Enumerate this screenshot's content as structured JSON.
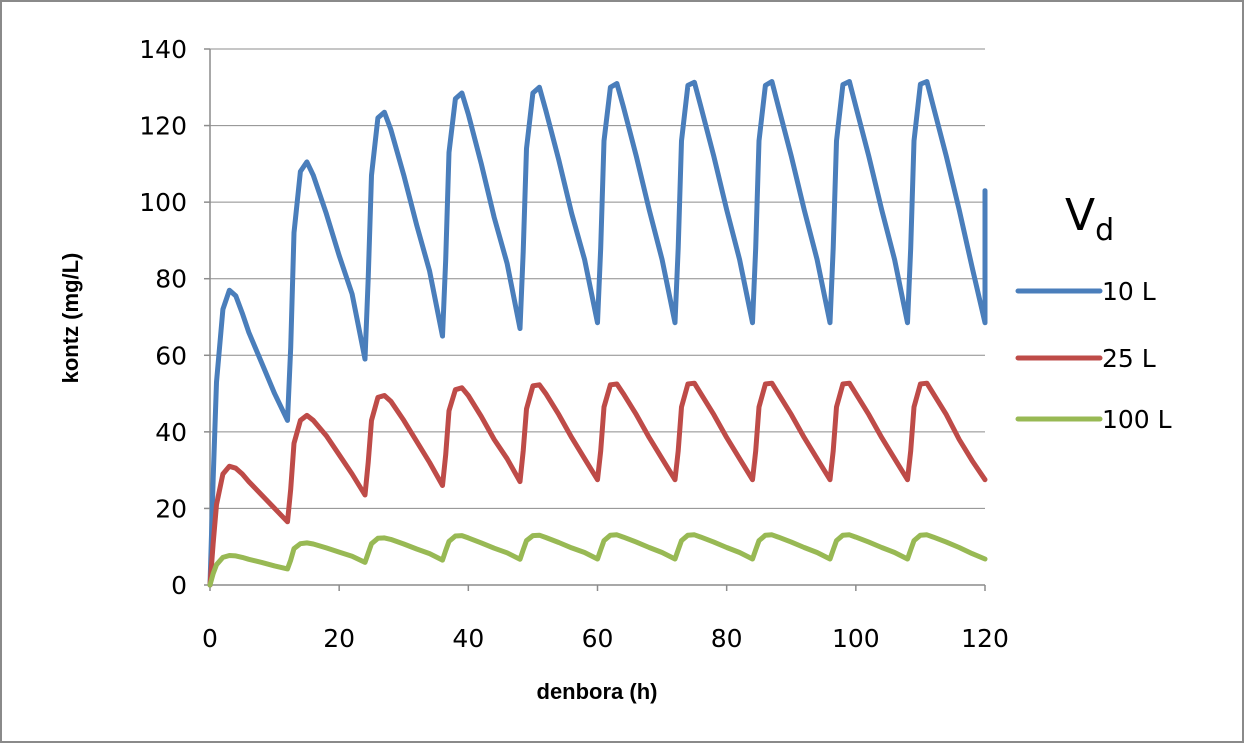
{
  "chart_data": {
    "type": "line",
    "xlabel": "denbora (h)",
    "ylabel": "kontz (mg/L)",
    "xlim": [
      0,
      120
    ],
    "ylim": [
      0,
      140
    ],
    "x_ticks": [
      "0",
      "20",
      "40",
      "60",
      "80",
      "100",
      "120"
    ],
    "y_ticks": [
      "0",
      "20",
      "40",
      "60",
      "80",
      "100",
      "120",
      "140"
    ],
    "grid": "horizontal",
    "legend": {
      "title": "V",
      "title_subscript": "d",
      "placement": "right"
    },
    "series": [
      {
        "name": "10 L",
        "color": "#4A7EBB",
        "points": [
          [
            0,
            0
          ],
          [
            0.5,
            28
          ],
          [
            1,
            53
          ],
          [
            2,
            72
          ],
          [
            3,
            77
          ],
          [
            4,
            75.5
          ],
          [
            5,
            71
          ],
          [
            6,
            66
          ],
          [
            8,
            58
          ],
          [
            10,
            50
          ],
          [
            12,
            43
          ],
          [
            12.5,
            62
          ],
          [
            13,
            92
          ],
          [
            14,
            108
          ],
          [
            15,
            110.5
          ],
          [
            16,
            107
          ],
          [
            18,
            97
          ],
          [
            20,
            86
          ],
          [
            22,
            76
          ],
          [
            24,
            59
          ],
          [
            24.5,
            80
          ],
          [
            25,
            107
          ],
          [
            26,
            122
          ],
          [
            27,
            123.5
          ],
          [
            28,
            119
          ],
          [
            30,
            107
          ],
          [
            32,
            94
          ],
          [
            34,
            82
          ],
          [
            36,
            65
          ],
          [
            36.5,
            85
          ],
          [
            37,
            113
          ],
          [
            38,
            127
          ],
          [
            39,
            128.5
          ],
          [
            40,
            123
          ],
          [
            42,
            110
          ],
          [
            44,
            96
          ],
          [
            46,
            84
          ],
          [
            48,
            67
          ],
          [
            48.5,
            87
          ],
          [
            49,
            114
          ],
          [
            50,
            128.5
          ],
          [
            51,
            130
          ],
          [
            52,
            124
          ],
          [
            54,
            111
          ],
          [
            56,
            97
          ],
          [
            58,
            85
          ],
          [
            60,
            68.5
          ],
          [
            60.5,
            88
          ],
          [
            61,
            116
          ],
          [
            62,
            130
          ],
          [
            63,
            131
          ],
          [
            64,
            125
          ],
          [
            66,
            112
          ],
          [
            68,
            98
          ],
          [
            70,
            85
          ],
          [
            72,
            68.5
          ],
          [
            72.5,
            88
          ],
          [
            73,
            116
          ],
          [
            74,
            130.5
          ],
          [
            75,
            131.3
          ],
          [
            76,
            125
          ],
          [
            78,
            112
          ],
          [
            80,
            98
          ],
          [
            82,
            85
          ],
          [
            84,
            68.5
          ],
          [
            84.5,
            88
          ],
          [
            85,
            116
          ],
          [
            86,
            130.5
          ],
          [
            87,
            131.5
          ],
          [
            88,
            125
          ],
          [
            90,
            112
          ],
          [
            92,
            98
          ],
          [
            94,
            85
          ],
          [
            96,
            68.5
          ],
          [
            96.5,
            88
          ],
          [
            97,
            116
          ],
          [
            98,
            130.7
          ],
          [
            99,
            131.5
          ],
          [
            100,
            125
          ],
          [
            102,
            112
          ],
          [
            104,
            98
          ],
          [
            106,
            85
          ],
          [
            108,
            68.5
          ],
          [
            108.5,
            88
          ],
          [
            109,
            116
          ],
          [
            110,
            130.8
          ],
          [
            111,
            131.5
          ],
          [
            112,
            125
          ],
          [
            114,
            112
          ],
          [
            116,
            98
          ],
          [
            118,
            83
          ],
          [
            120,
            68.5
          ],
          [
            120,
            103
          ]
        ]
      },
      {
        "name": "25 L",
        "color": "#BE4B48",
        "points": [
          [
            0,
            0
          ],
          [
            0.5,
            11
          ],
          [
            1,
            21
          ],
          [
            2,
            29
          ],
          [
            3,
            31
          ],
          [
            4,
            30.5
          ],
          [
            5,
            29
          ],
          [
            6,
            27
          ],
          [
            8,
            23.5
          ],
          [
            10,
            20
          ],
          [
            12,
            16.5
          ],
          [
            12.5,
            25
          ],
          [
            13,
            37
          ],
          [
            14,
            43
          ],
          [
            15,
            44.3
          ],
          [
            16,
            43
          ],
          [
            18,
            39
          ],
          [
            20,
            34
          ],
          [
            22,
            29
          ],
          [
            24,
            23.5
          ],
          [
            24.5,
            32
          ],
          [
            25,
            43
          ],
          [
            26,
            49
          ],
          [
            27,
            49.5
          ],
          [
            28,
            48
          ],
          [
            30,
            43
          ],
          [
            32,
            37.5
          ],
          [
            34,
            32
          ],
          [
            36,
            26
          ],
          [
            36.5,
            34
          ],
          [
            37,
            45.5
          ],
          [
            38,
            51
          ],
          [
            39,
            51.5
          ],
          [
            40,
            49.5
          ],
          [
            42,
            44
          ],
          [
            44,
            38
          ],
          [
            46,
            33
          ],
          [
            48,
            27
          ],
          [
            48.5,
            35
          ],
          [
            49,
            46
          ],
          [
            50,
            52
          ],
          [
            51,
            52.3
          ],
          [
            52,
            50
          ],
          [
            54,
            44.5
          ],
          [
            56,
            38.5
          ],
          [
            58,
            33
          ],
          [
            60,
            27.5
          ],
          [
            60.5,
            35
          ],
          [
            61,
            46.5
          ],
          [
            62,
            52.3
          ],
          [
            63,
            52.5
          ],
          [
            64,
            50
          ],
          [
            66,
            44.5
          ],
          [
            68,
            38.5
          ],
          [
            70,
            33
          ],
          [
            72,
            27.5
          ],
          [
            72.5,
            35
          ],
          [
            73,
            46.5
          ],
          [
            74,
            52.5
          ],
          [
            75,
            52.7
          ],
          [
            76,
            50
          ],
          [
            78,
            44.5
          ],
          [
            80,
            38.5
          ],
          [
            82,
            33
          ],
          [
            84,
            27.5
          ],
          [
            84.5,
            35
          ],
          [
            85,
            46.5
          ],
          [
            86,
            52.5
          ],
          [
            87,
            52.7
          ],
          [
            88,
            50
          ],
          [
            90,
            44.5
          ],
          [
            92,
            38.5
          ],
          [
            94,
            33
          ],
          [
            96,
            27.5
          ],
          [
            96.5,
            35
          ],
          [
            97,
            46.5
          ],
          [
            98,
            52.5
          ],
          [
            99,
            52.7
          ],
          [
            100,
            50
          ],
          [
            102,
            44.5
          ],
          [
            104,
            38.5
          ],
          [
            106,
            33
          ],
          [
            108,
            27.5
          ],
          [
            108.5,
            35
          ],
          [
            109,
            46.5
          ],
          [
            110,
            52.5
          ],
          [
            111,
            52.7
          ],
          [
            112,
            50
          ],
          [
            114,
            44.5
          ],
          [
            116,
            38
          ],
          [
            118,
            32.5
          ],
          [
            120,
            27.5
          ]
        ]
      },
      {
        "name": "100 L",
        "color": "#98B954",
        "points": [
          [
            0,
            0
          ],
          [
            0.5,
            3
          ],
          [
            1,
            5.3
          ],
          [
            2,
            7.2
          ],
          [
            3,
            7.7
          ],
          [
            4,
            7.6
          ],
          [
            5,
            7.2
          ],
          [
            6,
            6.7
          ],
          [
            8,
            5.9
          ],
          [
            10,
            5
          ],
          [
            12,
            4.2
          ],
          [
            12.5,
            6.5
          ],
          [
            13,
            9.5
          ],
          [
            14,
            10.8
          ],
          [
            15,
            11
          ],
          [
            16,
            10.7
          ],
          [
            18,
            9.7
          ],
          [
            20,
            8.6
          ],
          [
            22,
            7.5
          ],
          [
            24,
            5.9
          ],
          [
            24.5,
            8.3
          ],
          [
            25,
            10.8
          ],
          [
            26,
            12.2
          ],
          [
            27,
            12.3
          ],
          [
            28,
            11.9
          ],
          [
            30,
            10.7
          ],
          [
            32,
            9.4
          ],
          [
            34,
            8.2
          ],
          [
            36,
            6.5
          ],
          [
            36.5,
            9
          ],
          [
            37,
            11.4
          ],
          [
            38,
            12.8
          ],
          [
            39,
            12.9
          ],
          [
            40,
            12.3
          ],
          [
            42,
            11
          ],
          [
            44,
            9.6
          ],
          [
            46,
            8.4
          ],
          [
            48,
            6.7
          ],
          [
            48.5,
            9.2
          ],
          [
            49,
            11.6
          ],
          [
            50,
            12.9
          ],
          [
            51,
            13
          ],
          [
            52,
            12.4
          ],
          [
            54,
            11.1
          ],
          [
            56,
            9.7
          ],
          [
            58,
            8.5
          ],
          [
            60,
            6.8
          ],
          [
            60.5,
            9.2
          ],
          [
            61,
            11.6
          ],
          [
            62,
            13
          ],
          [
            63,
            13.1
          ],
          [
            64,
            12.5
          ],
          [
            66,
            11.2
          ],
          [
            68,
            9.8
          ],
          [
            70,
            8.5
          ],
          [
            72,
            6.8
          ],
          [
            72.5,
            9.2
          ],
          [
            73,
            11.6
          ],
          [
            74,
            13
          ],
          [
            75,
            13.1
          ],
          [
            76,
            12.5
          ],
          [
            78,
            11.2
          ],
          [
            80,
            9.8
          ],
          [
            82,
            8.5
          ],
          [
            84,
            6.8
          ],
          [
            84.5,
            9.2
          ],
          [
            85,
            11.6
          ],
          [
            86,
            13
          ],
          [
            87,
            13.1
          ],
          [
            88,
            12.5
          ],
          [
            90,
            11.2
          ],
          [
            92,
            9.8
          ],
          [
            94,
            8.5
          ],
          [
            96,
            6.8
          ],
          [
            96.5,
            9.2
          ],
          [
            97,
            11.6
          ],
          [
            98,
            13
          ],
          [
            99,
            13.1
          ],
          [
            100,
            12.5
          ],
          [
            102,
            11.2
          ],
          [
            104,
            9.8
          ],
          [
            106,
            8.5
          ],
          [
            108,
            6.8
          ],
          [
            108.5,
            9.2
          ],
          [
            109,
            11.6
          ],
          [
            110,
            13
          ],
          [
            111,
            13.1
          ],
          [
            112,
            12.5
          ],
          [
            114,
            11.2
          ],
          [
            116,
            9.8
          ],
          [
            118,
            8.2
          ],
          [
            120,
            6.8
          ]
        ]
      }
    ]
  }
}
